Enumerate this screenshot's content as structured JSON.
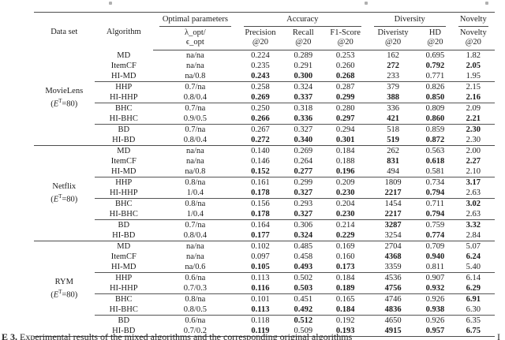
{
  "caption": {
    "label": "E 3.",
    "text": "Experimental results of the mixed algorithms and the corresponding original algorithms",
    "tail": "I"
  },
  "table": {
    "columns": {
      "dataset": "Data set",
      "algorithm": "Algorithm",
      "params_l1": "λ_opt/",
      "params_l2": "ϵ_opt"
    },
    "groups": {
      "optimal": "Optimal parameters",
      "accuracy": "Accuracy",
      "diversity": "Diversity",
      "novelty": "Novelty"
    },
    "sub": [
      {
        "l1": "Precision",
        "l2": "@20"
      },
      {
        "l1": "Recall",
        "l2": "@20"
      },
      {
        "l1": "F1-Score",
        "l2": "@20"
      },
      {
        "l1": "Diveristy",
        "l2": "@20"
      },
      {
        "l1": "HD",
        "l2": "@20"
      },
      {
        "l1": "Novelty",
        "l2": "@20"
      }
    ],
    "sections": [
      {
        "dataset": {
          "name": "MovieLens",
          "paren": "(",
          "var": "E",
          "sup": "T",
          "rest": "=80)"
        },
        "rows": [
          {
            "algorithm": "MD",
            "params": "na/na",
            "values": [
              "0.224",
              "0.289",
              "0.253",
              "162",
              "0.695",
              "1.82"
            ],
            "bold": [
              0,
              0,
              0,
              0,
              0,
              0
            ],
            "sep": false
          },
          {
            "algorithm": "ItemCF",
            "params": "na/na",
            "values": [
              "0.235",
              "0.291",
              "0.260",
              "272",
              "0.792",
              "2.05"
            ],
            "bold": [
              0,
              0,
              0,
              1,
              1,
              1
            ],
            "sep": false
          },
          {
            "algorithm": "HI-MD",
            "params": "na/0.8",
            "values": [
              "0.243",
              "0.300",
              "0.268",
              "233",
              "0.771",
              "1.95"
            ],
            "bold": [
              1,
              1,
              1,
              0,
              0,
              0
            ],
            "sep": false
          },
          {
            "algorithm": "HHP",
            "params": "0.7/na",
            "values": [
              "0.258",
              "0.324",
              "0.287",
              "379",
              "0.826",
              "2.15"
            ],
            "bold": [
              0,
              0,
              0,
              0,
              0,
              0
            ],
            "sep": true
          },
          {
            "algorithm": "HI-HHP",
            "params": "0.8/0.4",
            "values": [
              "0.269",
              "0.337",
              "0.299",
              "388",
              "0.850",
              "2.16"
            ],
            "bold": [
              1,
              1,
              1,
              1,
              1,
              1
            ],
            "sep": false
          },
          {
            "algorithm": "BHC",
            "params": "0.7/na",
            "values": [
              "0.250",
              "0.318",
              "0.280",
              "336",
              "0.809",
              "2.09"
            ],
            "bold": [
              0,
              0,
              0,
              0,
              0,
              0
            ],
            "sep": true
          },
          {
            "algorithm": "HI-BHC",
            "params": "0.9/0.5",
            "values": [
              "0.266",
              "0.336",
              "0.297",
              "421",
              "0.860",
              "2.21"
            ],
            "bold": [
              1,
              1,
              1,
              1,
              1,
              1
            ],
            "sep": false
          },
          {
            "algorithm": "BD",
            "params": "0.7/na",
            "values": [
              "0.267",
              "0.327",
              "0.294",
              "518",
              "0.859",
              "2.30"
            ],
            "bold": [
              0,
              0,
              0,
              0,
              0,
              1
            ],
            "sep": true
          },
          {
            "algorithm": "HI-BD",
            "params": "0.8/0.4",
            "values": [
              "0.272",
              "0.340",
              "0.301",
              "519",
              "0.872",
              "2.30"
            ],
            "bold": [
              1,
              1,
              1,
              1,
              1,
              0
            ],
            "sep": false
          }
        ]
      },
      {
        "dataset": {
          "name": "Netflix",
          "paren": "(",
          "var": "E",
          "sup": "T",
          "rest": "=80)"
        },
        "rows": [
          {
            "algorithm": "MD",
            "params": "na/na",
            "values": [
              "0.140",
              "0.269",
              "0.184",
              "262",
              "0.563",
              "2.00"
            ],
            "bold": [
              0,
              0,
              0,
              0,
              0,
              0
            ],
            "sep": false
          },
          {
            "algorithm": "ItemCF",
            "params": "na/na",
            "values": [
              "0.146",
              "0.264",
              "0.188",
              "831",
              "0.618",
              "2.27"
            ],
            "bold": [
              0,
              0,
              0,
              1,
              1,
              1
            ],
            "sep": false
          },
          {
            "algorithm": "HI-MD",
            "params": "na/0.8",
            "values": [
              "0.152",
              "0.277",
              "0.196",
              "494",
              "0.581",
              "2.10"
            ],
            "bold": [
              1,
              1,
              1,
              0,
              0,
              0
            ],
            "sep": false
          },
          {
            "algorithm": "HHP",
            "params": "0.8/na",
            "values": [
              "0.161",
              "0.299",
              "0.209",
              "1809",
              "0.734",
              "3.17"
            ],
            "bold": [
              0,
              0,
              0,
              0,
              0,
              1
            ],
            "sep": true
          },
          {
            "algorithm": "HI-HHP",
            "params": "1/0.4",
            "values": [
              "0.178",
              "0.327",
              "0.230",
              "2217",
              "0.794",
              "2.63"
            ],
            "bold": [
              1,
              1,
              1,
              1,
              1,
              0
            ],
            "sep": false
          },
          {
            "algorithm": "BHC",
            "params": "0.8/na",
            "values": [
              "0.156",
              "0.293",
              "0.204",
              "1454",
              "0.711",
              "3.02"
            ],
            "bold": [
              0,
              0,
              0,
              0,
              0,
              1
            ],
            "sep": true
          },
          {
            "algorithm": "HI-BHC",
            "params": "1/0.4",
            "values": [
              "0.178",
              "0.327",
              "0.230",
              "2217",
              "0.794",
              "2.63"
            ],
            "bold": [
              1,
              1,
              1,
              1,
              1,
              0
            ],
            "sep": false
          },
          {
            "algorithm": "BD",
            "params": "0.7/na",
            "values": [
              "0.164",
              "0.306",
              "0.214",
              "3287",
              "0.759",
              "3.32"
            ],
            "bold": [
              0,
              0,
              0,
              1,
              0,
              1
            ],
            "sep": true
          },
          {
            "algorithm": "HI-BD",
            "params": "0.8/0.4",
            "values": [
              "0.177",
              "0.324",
              "0.229",
              "3254",
              "0.774",
              "2.84"
            ],
            "bold": [
              1,
              1,
              1,
              0,
              1,
              0
            ],
            "sep": false
          }
        ]
      },
      {
        "dataset": {
          "name": "RYM",
          "paren": "(",
          "var": "E",
          "sup": "T",
          "rest": "=80)"
        },
        "rows": [
          {
            "algorithm": "MD",
            "params": "na/na",
            "values": [
              "0.102",
              "0.485",
              "0.169",
              "2704",
              "0.709",
              "5.07"
            ],
            "bold": [
              0,
              0,
              0,
              0,
              0,
              0
            ],
            "sep": false
          },
          {
            "algorithm": "ItemCF",
            "params": "na/na",
            "values": [
              "0.097",
              "0.458",
              "0.160",
              "4368",
              "0.940",
              "6.24"
            ],
            "bold": [
              0,
              0,
              0,
              1,
              1,
              1
            ],
            "sep": false
          },
          {
            "algorithm": "HI-MD",
            "params": "na/0.6",
            "values": [
              "0.105",
              "0.493",
              "0.173",
              "3359",
              "0.811",
              "5.40"
            ],
            "bold": [
              1,
              1,
              1,
              0,
              0,
              0
            ],
            "sep": false
          },
          {
            "algorithm": "HHP",
            "params": "0.6/na",
            "values": [
              "0.113",
              "0.502",
              "0.184",
              "4536",
              "0.907",
              "6.14"
            ],
            "bold": [
              0,
              0,
              0,
              0,
              0,
              0
            ],
            "sep": true
          },
          {
            "algorithm": "HI-HHP",
            "params": "0.7/0.3",
            "values": [
              "0.116",
              "0.503",
              "0.189",
              "4756",
              "0.932",
              "6.29"
            ],
            "bold": [
              1,
              1,
              1,
              1,
              1,
              1
            ],
            "sep": false
          },
          {
            "algorithm": "BHC",
            "params": "0.8/na",
            "values": [
              "0.101",
              "0.451",
              "0.165",
              "4746",
              "0.926",
              "6.91"
            ],
            "bold": [
              0,
              0,
              0,
              0,
              0,
              1
            ],
            "sep": true
          },
          {
            "algorithm": "HI-BHC",
            "params": "0.8/0.5",
            "values": [
              "0.113",
              "0.492",
              "0.184",
              "4836",
              "0.938",
              "6.30"
            ],
            "bold": [
              1,
              1,
              1,
              1,
              1,
              0
            ],
            "sep": false
          },
          {
            "algorithm": "BD",
            "params": "0.6/na",
            "values": [
              "0.118",
              "0.512",
              "0.192",
              "4650",
              "0.926",
              "6.35"
            ],
            "bold": [
              0,
              1,
              0,
              0,
              0,
              0
            ],
            "sep": true
          },
          {
            "algorithm": "HI-BD",
            "params": "0.7/0.2",
            "values": [
              "0.119",
              "0.509",
              "0.193",
              "4915",
              "0.957",
              "6.75"
            ],
            "bold": [
              1,
              0,
              1,
              1,
              1,
              1
            ],
            "sep": false
          }
        ]
      }
    ]
  }
}
